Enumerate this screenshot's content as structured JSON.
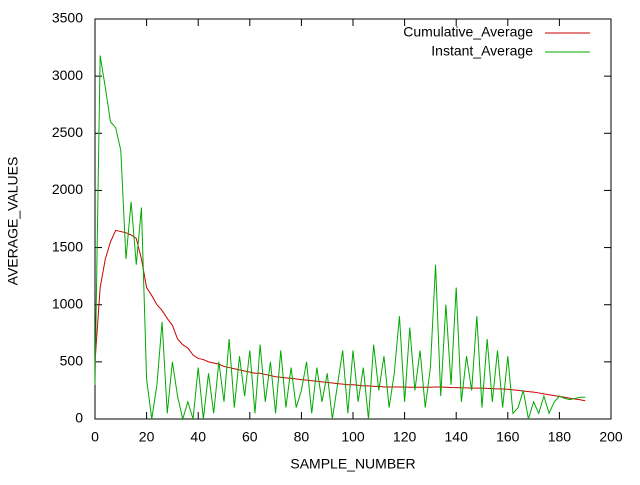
{
  "chart_data": {
    "type": "line",
    "xlabel": "SAMPLE_NUMBER",
    "ylabel": "AVERAGE_VALUES",
    "x": [
      0,
      2,
      4,
      6,
      8,
      10,
      12,
      14,
      16,
      18,
      20,
      22,
      24,
      26,
      28,
      30,
      32,
      34,
      36,
      38,
      40,
      42,
      44,
      46,
      48,
      50,
      52,
      54,
      56,
      58,
      60,
      62,
      64,
      66,
      68,
      70,
      72,
      74,
      76,
      78,
      80,
      82,
      84,
      86,
      88,
      90,
      92,
      94,
      96,
      98,
      100,
      102,
      104,
      106,
      108,
      110,
      112,
      114,
      116,
      118,
      120,
      122,
      124,
      126,
      128,
      130,
      132,
      134,
      136,
      138,
      140,
      142,
      144,
      146,
      148,
      150,
      152,
      154,
      156,
      158,
      160,
      162,
      164,
      166,
      168,
      170,
      172,
      174,
      176,
      178,
      180,
      182,
      184,
      186,
      188,
      190
    ],
    "series": [
      {
        "name": "Cumulative_Average",
        "color": "#cc0000",
        "values": [
          500,
          1150,
          1400,
          1550,
          1650,
          1640,
          1630,
          1610,
          1580,
          1400,
          1150,
          1080,
          1000,
          950,
          880,
          820,
          700,
          650,
          620,
          560,
          530,
          520,
          500,
          490,
          480,
          460,
          450,
          440,
          430,
          420,
          410,
          400,
          400,
          390,
          380,
          370,
          365,
          360,
          355,
          350,
          345,
          340,
          335,
          330,
          325,
          320,
          315,
          310,
          305,
          300,
          300,
          295,
          290,
          290,
          285,
          285,
          280,
          280,
          280,
          280,
          280,
          278,
          278,
          278,
          278,
          278,
          280,
          280,
          278,
          276,
          275,
          273,
          272,
          270,
          270,
          270,
          268,
          266,
          264,
          262,
          260,
          255,
          250,
          245,
          240,
          235,
          228,
          220,
          212,
          205,
          198,
          190,
          182,
          175,
          168,
          160
        ]
      },
      {
        "name": "Instant_Average",
        "color": "#00aa00",
        "values": [
          300,
          3180,
          2900,
          2600,
          2550,
          2350,
          1400,
          1900,
          1350,
          1850,
          350,
          0,
          300,
          850,
          50,
          500,
          200,
          0,
          150,
          0,
          450,
          0,
          400,
          50,
          500,
          150,
          700,
          100,
          550,
          200,
          600,
          50,
          650,
          150,
          500,
          50,
          600,
          100,
          450,
          100,
          250,
          500,
          50,
          450,
          150,
          400,
          0,
          300,
          600,
          50,
          600,
          150,
          450,
          0,
          650,
          250,
          550,
          100,
          400,
          900,
          150,
          800,
          250,
          600,
          100,
          450,
          1350,
          200,
          1000,
          300,
          1150,
          150,
          550,
          250,
          900,
          100,
          700,
          150,
          600,
          100,
          550,
          50,
          100,
          250,
          0,
          150,
          50,
          200,
          50,
          150,
          200,
          180,
          170,
          180,
          190,
          190
        ]
      }
    ],
    "xlim": [
      0,
      200
    ],
    "xticks": [
      0,
      20,
      40,
      60,
      80,
      100,
      120,
      140,
      160,
      180,
      200
    ],
    "ylim": [
      0,
      3500
    ],
    "yticks": [
      0,
      500,
      1000,
      1500,
      2000,
      2500,
      3000,
      3500
    ],
    "legend": "top right"
  }
}
